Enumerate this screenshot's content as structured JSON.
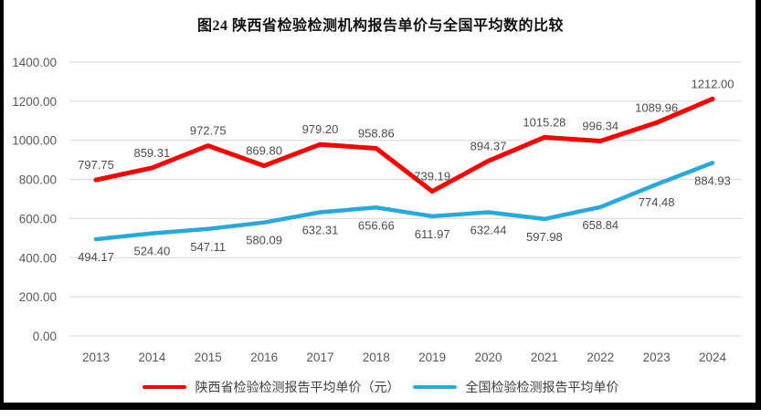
{
  "title": "图24 陕西省检验检测机构报告单价与全国平均数的比较",
  "chart_data": {
    "type": "line",
    "title": "图24 陕西省检验检测机构报告单价与全国平均数的比较",
    "categories": [
      "2013",
      "2014",
      "2015",
      "2016",
      "2017",
      "2018",
      "2019",
      "2020",
      "2021",
      "2022",
      "2023",
      "2024"
    ],
    "series": [
      {
        "name": "陕西省检验检测报告平均单价（元）",
        "color": "#fe0000",
        "stroke_width": 5,
        "label_position": "above",
        "values": [
          797.75,
          859.31,
          972.75,
          869.8,
          979.2,
          958.86,
          739.19,
          894.37,
          1015.28,
          996.34,
          1089.96,
          1212.0
        ]
      },
      {
        "name": "全国检验检测报告平均单价",
        "color": "#27a9e0",
        "stroke_width": 4.5,
        "label_position": "below",
        "values": [
          494.17,
          524.4,
          547.11,
          580.09,
          632.31,
          656.66,
          611.97,
          632.44,
          597.98,
          658.84,
          774.48,
          884.93
        ]
      }
    ],
    "ylim": [
      0,
      1400
    ],
    "ytick_step": 200,
    "ytick_labels": [
      "0.00",
      "200.00",
      "400.00",
      "600.00",
      "800.00",
      "1000.00",
      "1200.00",
      "1400.00"
    ],
    "value_label_decimals": 2,
    "grid": "horizontal",
    "gridline_color": "#d9d9d9",
    "axis_label_color": "#595959",
    "data_label_color": "#4d4d4d",
    "legend_position": "bottom"
  }
}
